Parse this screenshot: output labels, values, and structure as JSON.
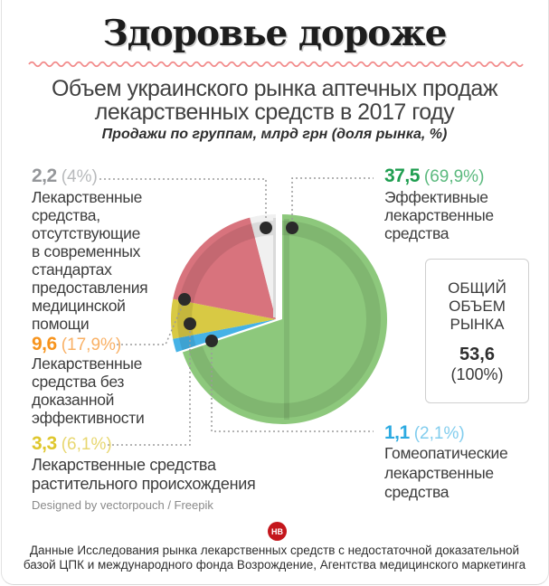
{
  "header": {
    "title": "Здоровье дороже",
    "subtitle_line1": "Объем украинского рынка аптечных продаж",
    "subtitle_line2": "лекарственных средств в 2017 году",
    "note": "Продажи по группам, млрд грн (доля рынка, %)"
  },
  "chart_data": {
    "type": "pie",
    "title": "Объем украинского рынка аптечных продаж лекарственных средств в 2017 году",
    "subtitle": "Продажи по группам, млрд грн (доля рынка, %)",
    "unit": "млрд грн",
    "total": 53.6,
    "slices": [
      {
        "label": "Эффективные лекарственные средства",
        "label_lines": [
          "Эффективные",
          "лекарственные",
          "средства"
        ],
        "value": "37,5",
        "pct": "(69,9%)",
        "value_num": 37.5,
        "pct_num": 69.9,
        "color": "#8dc87c",
        "text_color": "#1f9e50",
        "pct_text_color": "#5bb97e"
      },
      {
        "label": "Гомеопатические лекарственные средства",
        "label_lines": [
          "Гомеопатические",
          "лекарственные",
          "средства"
        ],
        "value": "1,1",
        "pct": "(2,1%)",
        "value_num": 1.1,
        "pct_num": 2.1,
        "color": "#45b2e6",
        "text_color": "#2caae1",
        "pct_text_color": "#82cdee"
      },
      {
        "label": "Лекарственные средства растительного происхождения",
        "label_lines": [
          "Лекарственные средства",
          "растительного происхождения"
        ],
        "value": "3,3",
        "pct": "(6,1%)",
        "value_num": 3.3,
        "pct_num": 6.1,
        "color": "#d8c944",
        "text_color": "#dfc72e",
        "pct_text_color": "#e8d770"
      },
      {
        "label": "Лекарственные средства без доказанной эффективности",
        "label_lines": [
          "Лекарственные",
          "средства без",
          "доказанной",
          "эффективности"
        ],
        "value": "9,6",
        "pct": "(17,9%)",
        "value_num": 9.6,
        "pct_num": 17.9,
        "color": "#d8737d",
        "text_color": "#f7941d",
        "pct_text_color": "#f9b166"
      },
      {
        "label": "Лекарственные средства, отсутствующие в современных стандартах предоставления медицинской помощи",
        "label_lines": [
          "Лекарственные",
          "средства,",
          "отсутствующие",
          "в современных",
          "стандартах",
          "предоставления",
          "медицинской",
          "помощи"
        ],
        "value": "2,2",
        "pct": "(4%)",
        "value_num": 2.2,
        "pct_num": 4.0,
        "color": "#f0f0f0",
        "text_color": "#95979a",
        "pct_text_color": "#b8babc"
      }
    ],
    "total_box": {
      "title_line1": "ОБЩИЙ",
      "title_line2": "ОБЪЕМ",
      "title_line3": "РЫНКА",
      "value": "53,6",
      "pct": "(100%)"
    },
    "accent_colors": {
      "wavy_divider": "#f28b8b",
      "leader_line": "#9b9b9b",
      "dot": "#2a2a2a"
    }
  },
  "credits": {
    "designed_by": "Designed by vectorpouch / Freepik",
    "logo_text": "НВ",
    "logo_color": "#c4161c"
  },
  "footer": {
    "line1": "Данные Исследования рынка лекарственных средств с недостаточной доказательной",
    "line2": "базой ЦПК и международного фонда Возрождение, Агентства медицинского маркетинга"
  }
}
